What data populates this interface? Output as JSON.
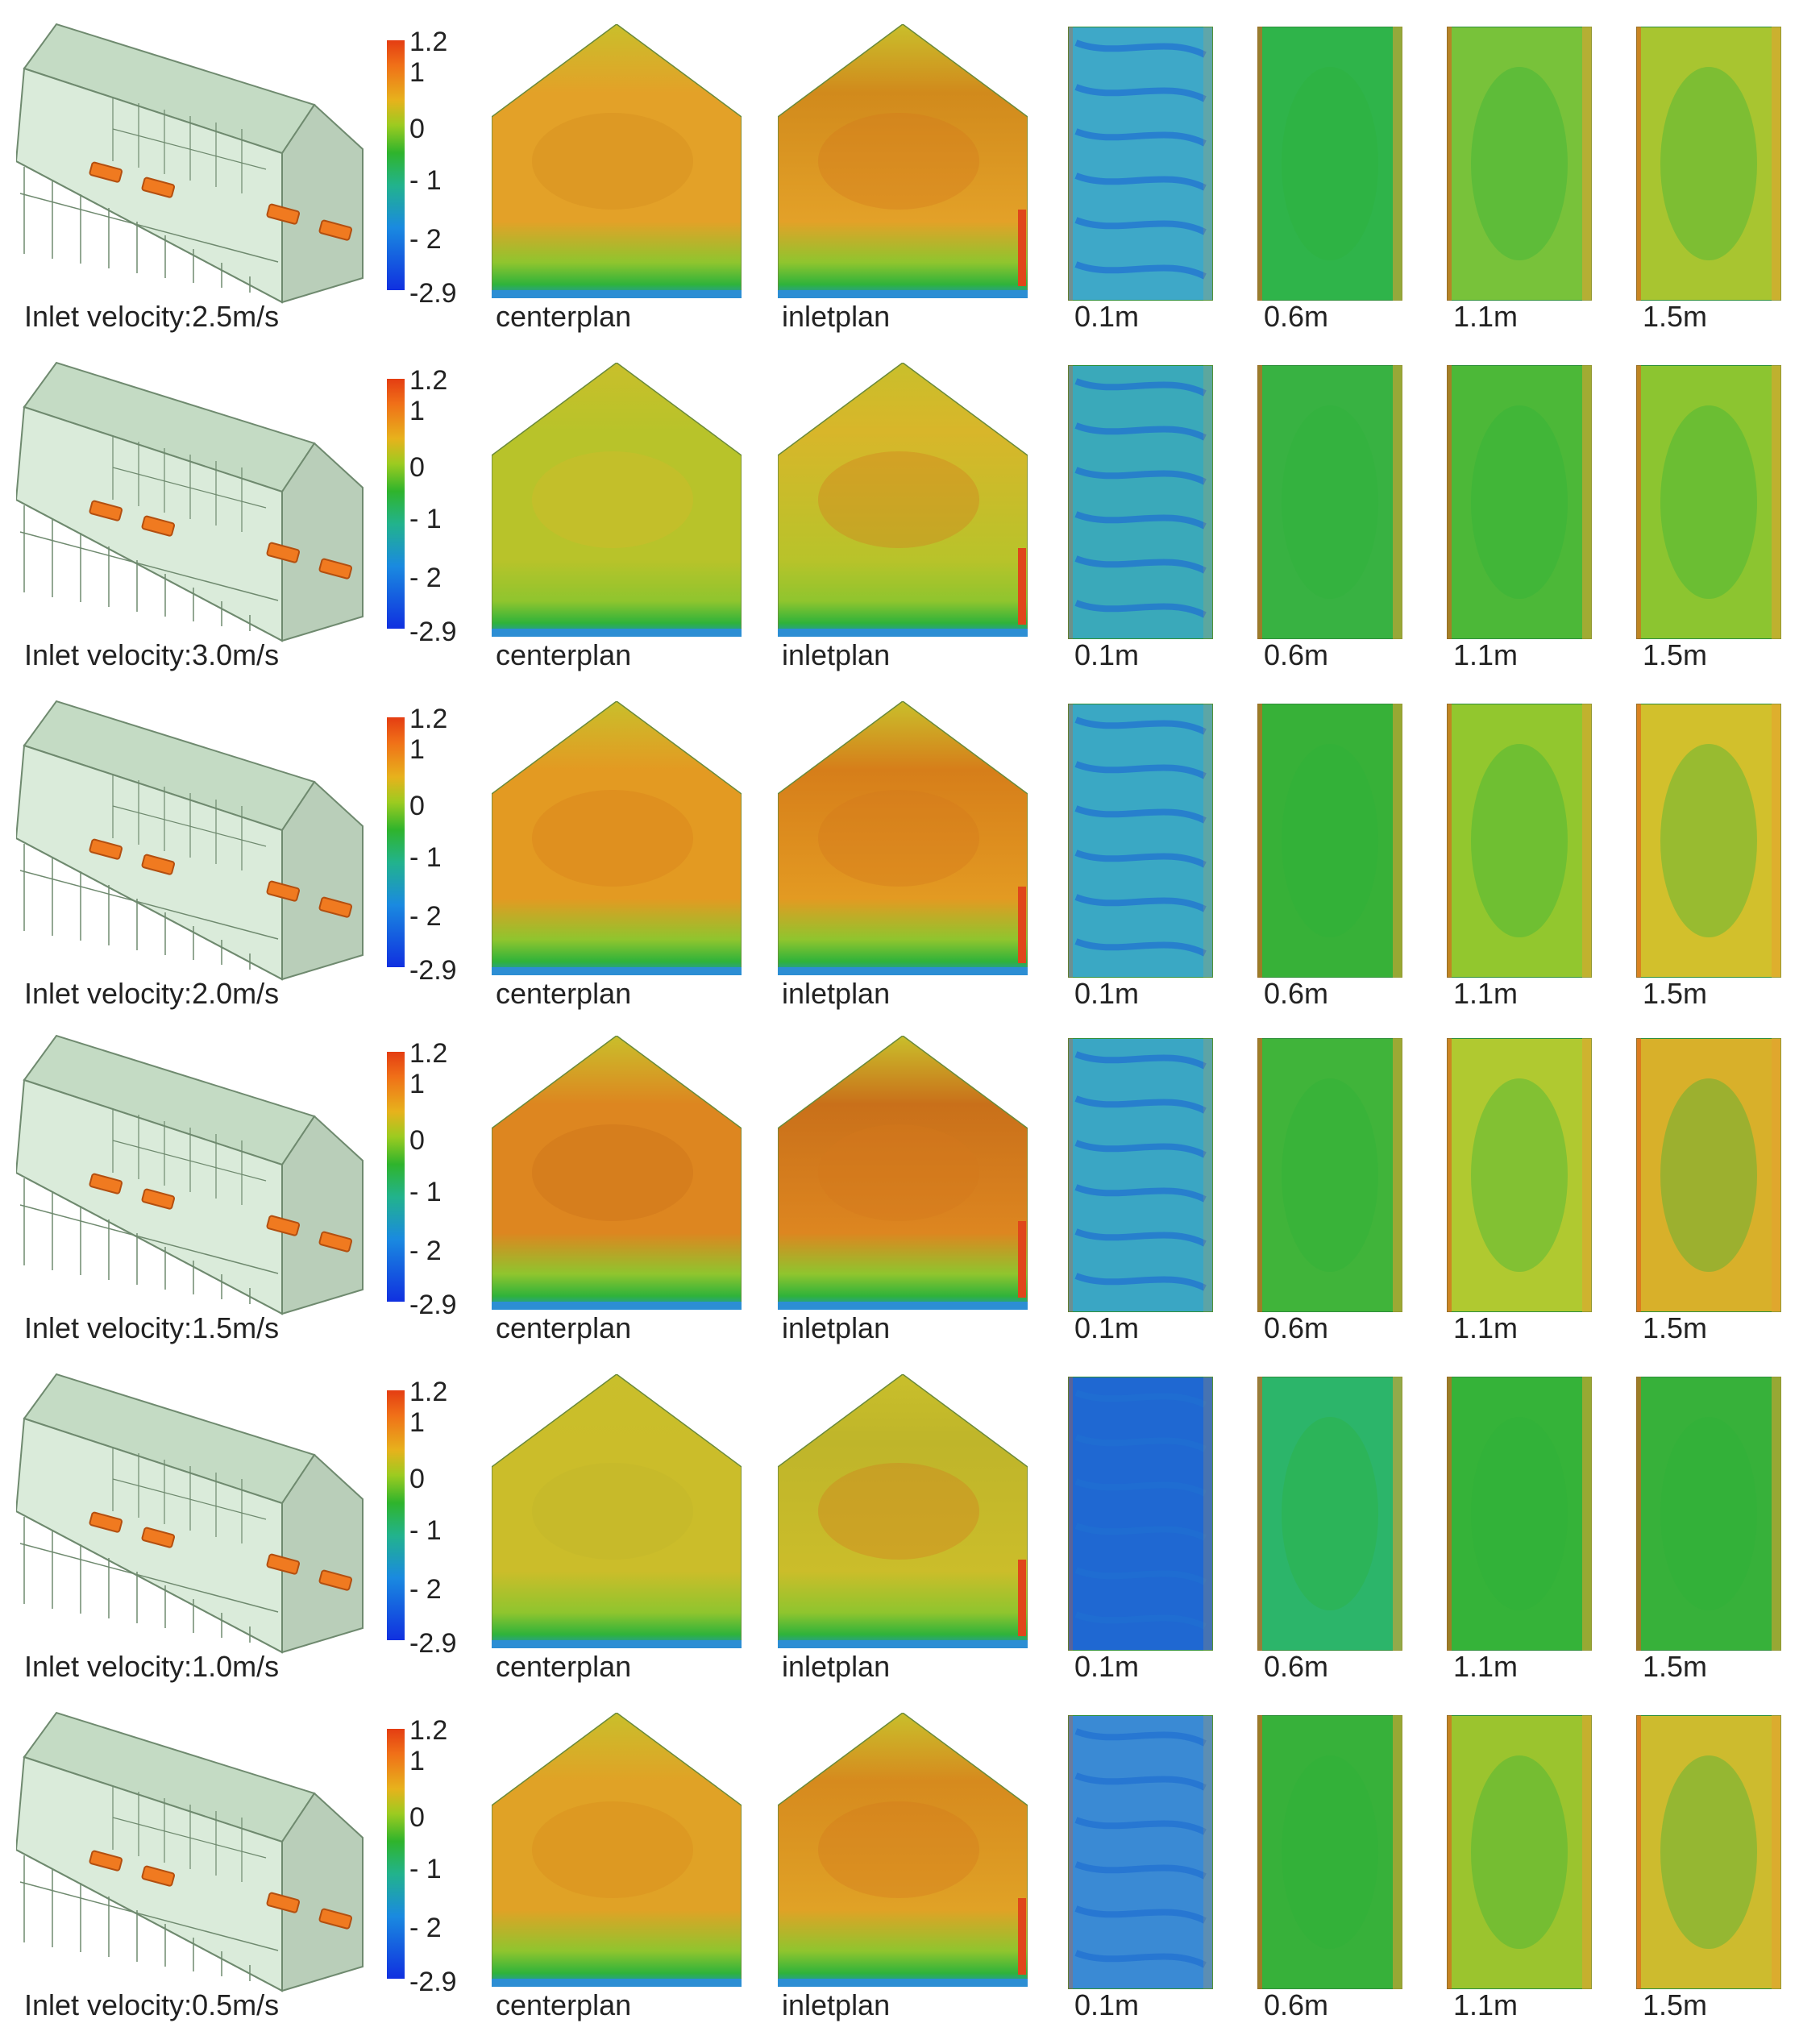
{
  "figure": {
    "colorbar": {
      "ticks": [
        "1.2",
        "1",
        "0",
        "- 1",
        "- 2",
        "-2.9"
      ],
      "colors": [
        "#e43d12",
        "#f07018",
        "#e7b21c",
        "#9ccb20",
        "#2fb42c",
        "#22b38c",
        "#1a8ae0",
        "#1030e0"
      ]
    },
    "rows": [
      {
        "velocity_label": "Inlet velocity:2.5m/s",
        "section_labels": [
          "centerplan",
          "inletplan"
        ],
        "height_labels": [
          "0.1m",
          "0.6m",
          "1.1m",
          "1.5m"
        ]
      },
      {
        "velocity_label": "Inlet velocity:3.0m/s",
        "section_labels": [
          "centerplan",
          "inletplan"
        ],
        "height_labels": [
          "0.1m",
          "0.6m",
          "1.1m",
          "1.5m"
        ]
      },
      {
        "velocity_label": "Inlet velocity:2.0m/s",
        "section_labels": [
          "centerplan",
          "inletplan"
        ],
        "height_labels": [
          "0.1m",
          "0.6m",
          "1.1m",
          "1.5m"
        ]
      },
      {
        "velocity_label": "Inlet velocity:1.5m/s",
        "section_labels": [
          "centerplan",
          "inletplan"
        ],
        "height_labels": [
          "0.1m",
          "0.6m",
          "1.1m",
          "1.5m"
        ]
      },
      {
        "velocity_label": "Inlet velocity:1.0m/s",
        "section_labels": [
          "centerplan",
          "inletplan"
        ],
        "height_labels": [
          "0.1m",
          "0.6m",
          "1.1m",
          "1.5m"
        ]
      },
      {
        "velocity_label": "Inlet velocity:0.5m/s",
        "section_labels": [
          "centerplan",
          "inletplan"
        ],
        "height_labels": [
          "0.1m",
          "0.6m",
          "1.1m",
          "1.5m"
        ]
      }
    ],
    "contour_palette": {
      "orange": "#e08a1e",
      "yellow": "#d9b92a",
      "yellow_green": "#a9c82c",
      "green": "#3fb62f",
      "teal": "#23ab7a",
      "blue": "#1c7fd9",
      "deep_blue": "#1446c8",
      "red": "#e0461a"
    }
  }
}
